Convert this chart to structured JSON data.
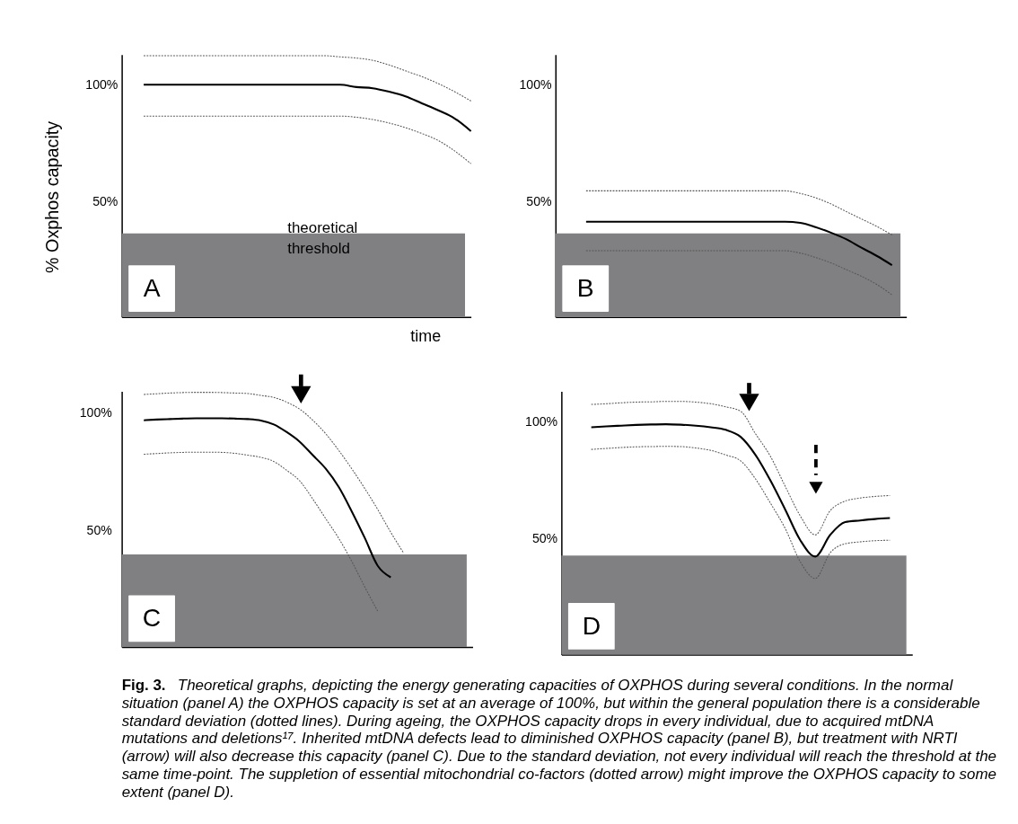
{
  "chart_data": [
    {
      "type": "line",
      "ylabel": "% Oxphos capacity",
      "xlabel": "time",
      "tick_labels": "y",
      "categories": [
        null,
        null,
        null,
        null,
        null,
        null,
        null,
        null,
        null,
        null,
        null,
        null,
        null,
        null,
        null,
        null,
        null,
        null,
        null,
        null,
        null
      ],
      "ylim": [
        0,
        113
      ],
      "yticks": [
        {
          "value": 50,
          "label": "50%"
        },
        {
          "value": 100,
          "label": "100%"
        }
      ],
      "series": [
        {
          "color": "#555555",
          "line_style": "dotted",
          "values": [
            112.5,
            112.5,
            112.5,
            112.5,
            112.5,
            112.5,
            112.5,
            112.5,
            112.5,
            112.5,
            112.5,
            112.5,
            112,
            111.5,
            110.5,
            108.5,
            106,
            103.5,
            100.5,
            97,
            93
          ]
        },
        {
          "color": "#000000",
          "line_style": "solid",
          "values": [
            100,
            100,
            100,
            100,
            100,
            100,
            100,
            100,
            100,
            100,
            100,
            100,
            100,
            99,
            98.5,
            97,
            95,
            92,
            89,
            85.5,
            80
          ]
        },
        {
          "color": "#555555",
          "line_style": "dotted",
          "values": [
            86.5,
            86.5,
            86.5,
            86.5,
            86.5,
            86.5,
            86.5,
            86.5,
            86.5,
            86.5,
            86.5,
            86.5,
            86.5,
            86,
            85,
            83.5,
            81.5,
            79,
            76,
            71.5,
            66
          ]
        }
      ],
      "bands": [
        {
          "axis": "y",
          "from": 0,
          "to": 36,
          "label": "theoretical threshold",
          "color": "#808083"
        }
      ],
      "annotations": [
        "A"
      ]
    },
    {
      "type": "line",
      "tick_labels": "y",
      "categories": [
        null,
        null,
        null,
        null,
        null,
        null,
        null,
        null,
        null,
        null,
        null,
        null,
        null,
        null,
        null,
        null,
        null,
        null,
        null,
        null,
        null
      ],
      "ylim": [
        0,
        113
      ],
      "yticks": [
        {
          "value": 50,
          "label": "50%"
        },
        {
          "value": 100,
          "label": "100%"
        }
      ],
      "series": [
        {
          "color": "#555555",
          "line_style": "dotted",
          "values": [
            54.3,
            54.3,
            54.3,
            54.3,
            54.3,
            54.3,
            54.3,
            54.3,
            54.3,
            54.3,
            54.3,
            54.3,
            54.3,
            54.3,
            53.2,
            51.3,
            48.7,
            45.4,
            42.2,
            39,
            35.3
          ]
        },
        {
          "color": "#000000",
          "line_style": "solid",
          "values": [
            41,
            41,
            41,
            41,
            41,
            41,
            41,
            41,
            41,
            41,
            41,
            41,
            41,
            41,
            40.5,
            38.7,
            36.3,
            33.5,
            29.8,
            26.3,
            22.3
          ]
        },
        {
          "color": "#555555",
          "line_style": "dotted",
          "values": [
            28.5,
            28.5,
            28.5,
            28.5,
            28.5,
            28.5,
            28.5,
            28.5,
            28.5,
            28.5,
            28.5,
            28.5,
            28.5,
            28.5,
            27.5,
            25.6,
            23.3,
            20.4,
            17.5,
            14,
            9.5
          ]
        }
      ],
      "bands": [
        {
          "axis": "y",
          "from": 0,
          "to": 36,
          "color": "#808083"
        }
      ],
      "annotations": [
        "B"
      ]
    },
    {
      "type": "line",
      "tick_labels": "y",
      "categories": [
        null,
        null,
        null,
        null,
        null,
        null,
        null,
        null,
        null,
        null,
        null,
        null,
        null,
        null,
        null,
        null,
        null,
        null,
        null,
        null,
        null
      ],
      "ylim": [
        0,
        109
      ],
      "yticks": [
        {
          "value": 50,
          "label": "50%"
        },
        {
          "value": 100,
          "label": "100%"
        }
      ],
      "series": [
        {
          "color": "#555555",
          "line_style": "dotted",
          "values": [
            107.7,
            108,
            108.3,
            108.5,
            108.6,
            108.6,
            108.5,
            108.3,
            108.1,
            107.3,
            106.4,
            104.4,
            101.4,
            96.7,
            90.9,
            83.8,
            76,
            67.6,
            58.6,
            48.9,
            40
          ]
        },
        {
          "color": "#000000",
          "line_style": "solid",
          "values": [
            96.7,
            97,
            97.2,
            97.4,
            97.5,
            97.5,
            97.5,
            97.4,
            97.2,
            96.6,
            94.9,
            91.6,
            87.5,
            81.8,
            76,
            68.2,
            57.8,
            46.5,
            34.6,
            29.7,
            null
          ]
        },
        {
          "color": "#555555",
          "line_style": "dotted",
          "values": [
            82.2,
            82.5,
            82.8,
            83,
            83.1,
            83.1,
            83,
            82.6,
            81.8,
            80.9,
            79.1,
            75.3,
            70.8,
            63.1,
            54.7,
            46.3,
            36.5,
            25.6,
            15.2,
            null,
            null
          ]
        }
      ],
      "bands": [
        {
          "axis": "y",
          "from": 0,
          "to": 39.5,
          "color": "#808083"
        }
      ],
      "annotations": [
        "C"
      ]
    },
    {
      "type": "line",
      "tick_labels": "y",
      "categories": [
        null,
        null,
        null,
        null,
        null,
        null,
        null,
        null,
        null,
        null,
        null,
        null,
        null,
        null,
        null,
        null,
        null,
        null,
        null,
        null,
        null
      ],
      "ylim": [
        0,
        113
      ],
      "yticks": [
        {
          "value": 50,
          "label": "50%"
        },
        {
          "value": 100,
          "label": "100%"
        }
      ],
      "series": [
        {
          "color": "#555555",
          "line_style": "dotted",
          "values": [
            107.4,
            107.7,
            108.1,
            108.4,
            108.5,
            108.7,
            108.7,
            108.4,
            107.7,
            106.4,
            104.5,
            94.8,
            85.1,
            72.1,
            59.5,
            51.4,
            61.8,
            65.9,
            67.2,
            67.9,
            68.3
          ]
        },
        {
          "color": "#000000",
          "line_style": "solid",
          "values": [
            97.6,
            98,
            98.3,
            98.6,
            98.8,
            98.9,
            98.7,
            98.3,
            97.6,
            96.5,
            93.5,
            85.7,
            74.7,
            62.1,
            49.1,
            42.1,
            51.4,
            56.9,
            57.6,
            58.2,
            58.6
          ]
        },
        {
          "color": "#555555",
          "line_style": "dotted",
          "values": [
            88.1,
            88.5,
            88.9,
            89.2,
            89.3,
            89.4,
            89.3,
            88.7,
            87.7,
            85.7,
            83.2,
            75.4,
            65,
            54,
            39.8,
            32.7,
            43.7,
            47.6,
            48.4,
            48.9,
            49.1
          ]
        }
      ],
      "bands": [
        {
          "axis": "y",
          "from": 0,
          "to": 42.5,
          "color": "#808083"
        }
      ],
      "annotations": [
        "D",
        "Fig. 3.",
        "Theoretical graphs, depicting the energy generating capacities of OXPHOS during several conditions. In the normal",
        "situation (panel A) the OXPHOS capacity is set at an average of 100%, but within the general population there is a considerable",
        "standard deviation (dotted lines). During ageing, the OXPHOS capacity drops in every individual, due to acquired mtDNA",
        "mutations and deletions¹⁷. Inherited mtDNA defects lead to diminished OXPHOS capacity (panel B), but treatment with NRTI",
        "(arrow) will also decrease this capacity (panel C). Due to the standard deviation, not every individual will reach the threshold at the",
        "same time-point. The suppletion of essential mitochondrial co-factors (dotted arrow) might improve the OXPHOS capacity to some",
        "extent (panel D)."
      ]
    }
  ]
}
